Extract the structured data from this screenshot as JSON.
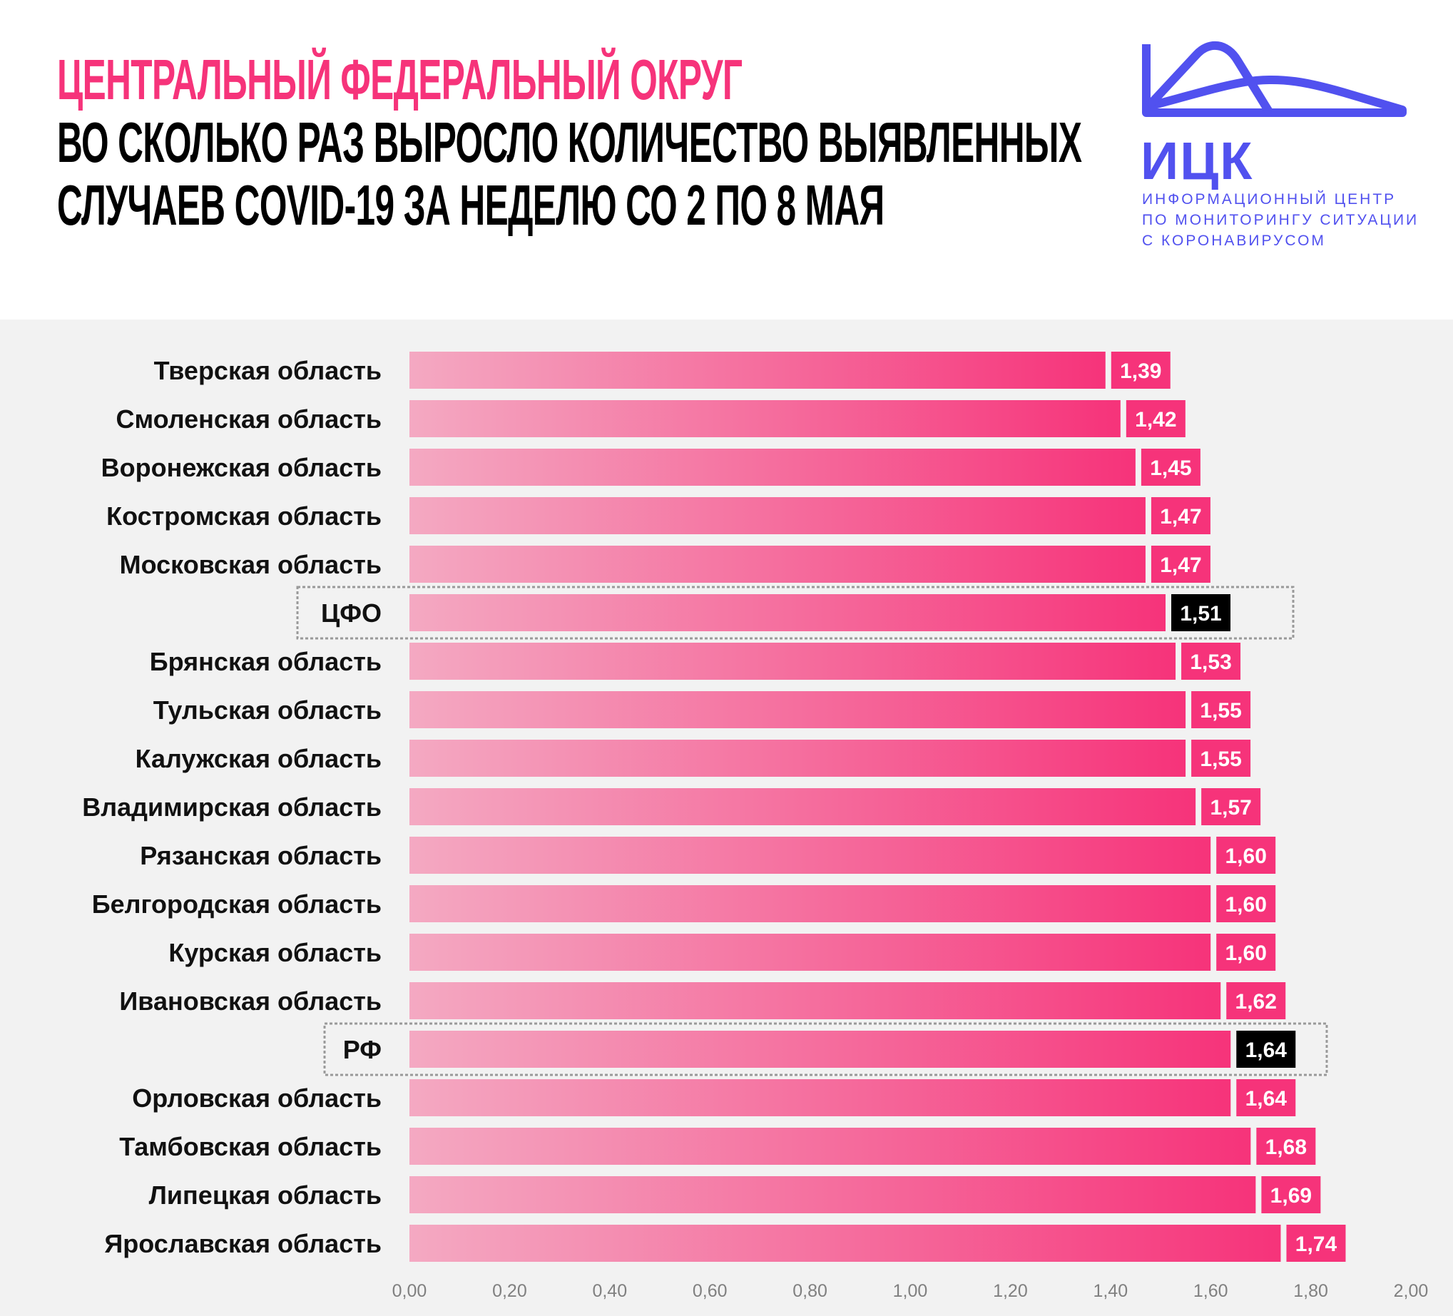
{
  "header": {
    "title_line1": "ЦЕНТРАЛЬНЫЙ ФЕДЕРАЛЬНЫЙ ОКРУГ",
    "title_line2": "ВО СКОЛЬКО РАЗ ВЫРОСЛО КОЛИЧЕСТВО ВЫЯВЛЕННЫХ",
    "title_line3": "СЛУЧАЕВ  COVID-19 ЗА НЕДЕЛЮ СО 2 ПО 8 МАЯ",
    "title_accent_color": "#f6337a"
  },
  "logo": {
    "abbr": "ИЦК",
    "line1": "ИНФОРМАЦИОННЫЙ ЦЕНТР",
    "line2": "ПО МОНИТОРИНГУ СИТУАЦИИ",
    "line3": "С КОРОНАВИРУСОМ",
    "color": "#5151ef"
  },
  "chart_data": {
    "type": "bar",
    "orientation": "horizontal",
    "categories": [
      "Тверская область",
      "Смоленская область",
      "Воронежская область",
      "Костромская область",
      "Московская область",
      "ЦФО",
      "Брянская область",
      "Тульская область",
      "Калужская область",
      "Владимирская область",
      "Рязанская область",
      "Белгородская область",
      "Курская область",
      "Ивановская область",
      "РФ",
      "Орловская область",
      "Тамбовская область",
      "Липецкая область",
      "Ярославская область"
    ],
    "values": [
      1.39,
      1.42,
      1.45,
      1.47,
      1.47,
      1.51,
      1.53,
      1.55,
      1.55,
      1.57,
      1.6,
      1.6,
      1.6,
      1.62,
      1.64,
      1.64,
      1.68,
      1.69,
      1.74
    ],
    "value_labels": [
      "1,39",
      "1,42",
      "1,45",
      "1,47",
      "1,47",
      "1,51",
      "1,53",
      "1,55",
      "1,55",
      "1,57",
      "1,60",
      "1,60",
      "1,60",
      "1,62",
      "1,64",
      "1,64",
      "1,68",
      "1,69",
      "1,74"
    ],
    "highlighted": [
      "ЦФО",
      "РФ"
    ],
    "xlim": [
      0,
      2.0
    ],
    "x_ticks": [
      "0,00",
      "0,20",
      "0,40",
      "0,60",
      "0,80",
      "1,00",
      "1,20",
      "1,40",
      "1,60",
      "1,80",
      "2,00"
    ],
    "grid": false,
    "colors": {
      "bar_start": "#f4a9c2",
      "bar_end": "#f6337a",
      "label_bg": "#f6337a",
      "highlight_label_bg": "#000000"
    }
  }
}
